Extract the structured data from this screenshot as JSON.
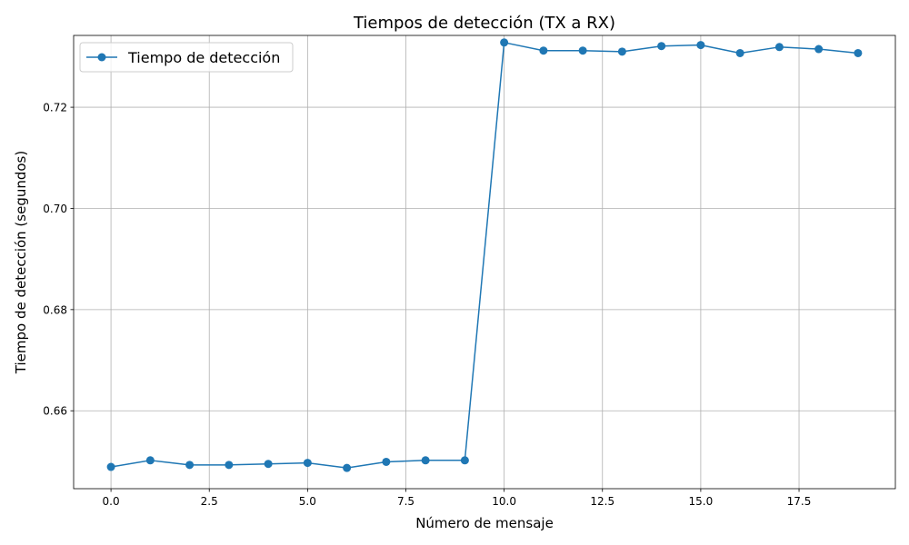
{
  "chart_data": {
    "type": "line",
    "title": "Tiempos de detección (TX a RX)",
    "xlabel": "Número de mensaje",
    "ylabel": "Tiempo de detección (segundos)",
    "xlim": [
      -0.95,
      19.95
    ],
    "ylim": [
      0.6446,
      0.7342
    ],
    "x_ticks": [
      0.0,
      2.5,
      5.0,
      7.5,
      10.0,
      12.5,
      15.0,
      17.5
    ],
    "x_tick_labels": [
      "0.0",
      "2.5",
      "5.0",
      "7.5",
      "10.0",
      "12.5",
      "15.0",
      "17.5"
    ],
    "y_ticks": [
      0.66,
      0.68,
      0.7,
      0.72
    ],
    "y_tick_labels": [
      "0.66",
      "0.68",
      "0.70",
      "0.72"
    ],
    "grid": true,
    "legend_position": "top-left",
    "series": [
      {
        "name": "Tiempo de detección",
        "color": "#1f77b4",
        "marker": "circle",
        "x": [
          0,
          1,
          2,
          3,
          4,
          5,
          6,
          7,
          8,
          9,
          10,
          11,
          12,
          13,
          14,
          15,
          16,
          17,
          18,
          19
        ],
        "y": [
          0.6489,
          0.6502,
          0.6493,
          0.6493,
          0.6495,
          0.6497,
          0.6487,
          0.6499,
          0.6502,
          0.6502,
          0.7328,
          0.7312,
          0.7312,
          0.731,
          0.7321,
          0.7323,
          0.7307,
          0.7319,
          0.7315,
          0.7307
        ]
      }
    ]
  }
}
